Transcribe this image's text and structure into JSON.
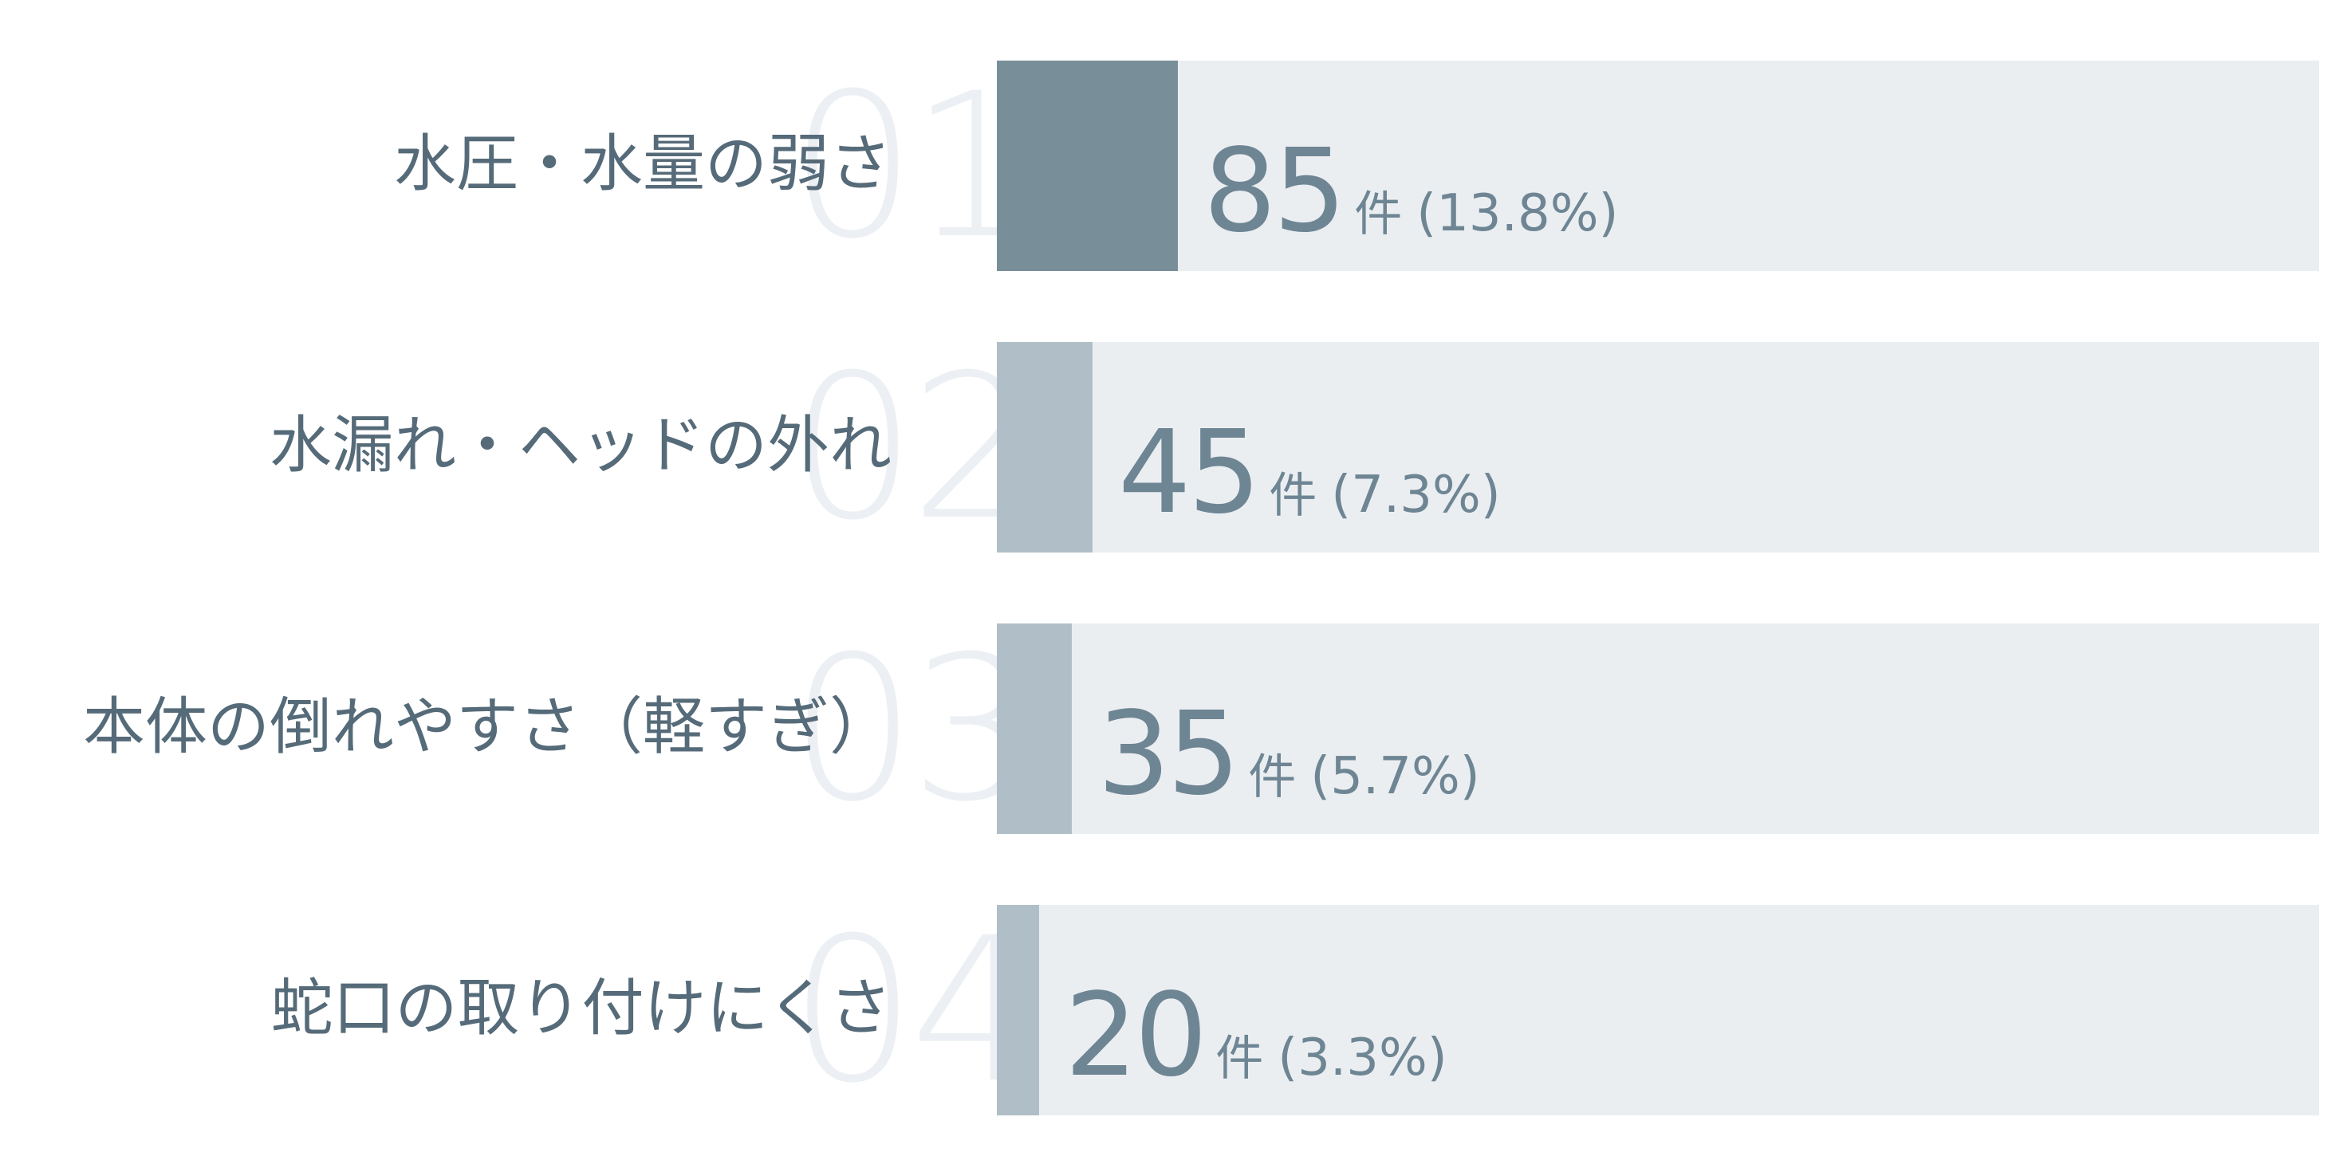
{
  "colors": {
    "top_bar": "#788f9a",
    "other_bar": "#b0bfc7",
    "track": "#ebeef1",
    "label_text": "#566b79",
    "value_text": "#6e8594",
    "rank_number": "#eceff3"
  },
  "chart_data": {
    "type": "bar",
    "orientation": "horizontal",
    "title": "",
    "xlabel": "",
    "ylabel": "",
    "xlim": [
      0,
      620
    ],
    "unit": "件",
    "grid": false,
    "legend": "none",
    "categories": [
      "水圧・水量の弱さ",
      "水漏れ・ヘッドの外れ",
      "本体の倒れやすさ（軽すぎ）",
      "蛇口の取り付けにくさ"
    ],
    "ranks": [
      "01",
      "02",
      "03",
      "04"
    ],
    "values": [
      85,
      45,
      35,
      20
    ],
    "percent_labels": [
      "(13.8%)",
      "(7.3%)",
      "(5.7%)",
      "(3.3%)"
    ]
  }
}
